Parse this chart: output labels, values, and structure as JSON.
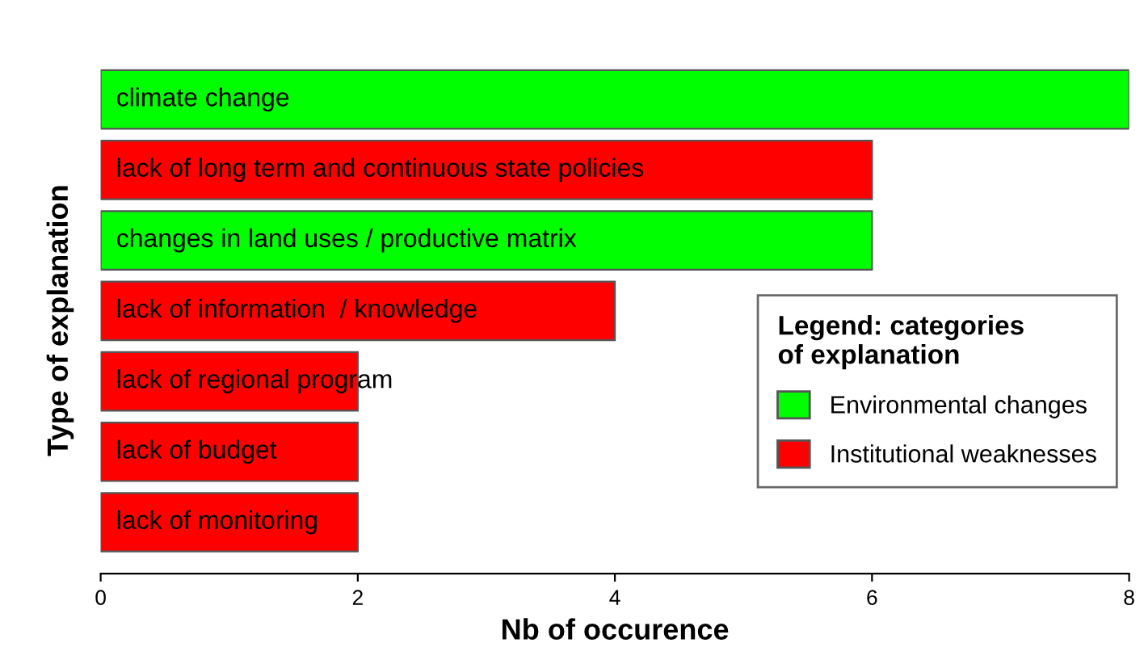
{
  "chart_data": {
    "type": "bar",
    "orientation": "horizontal",
    "xlabel": "Nb of occurence",
    "ylabel": "Type of explanation",
    "legend_title": "Legend: categories\nof explanation",
    "categories": [
      "climate change",
      "lack of long term and continuous state policies",
      "changes in land uses / productive matrix",
      "lack of information  / knowledge",
      "lack of regional program",
      "lack of budget",
      "lack of monitoring"
    ],
    "series": [
      {
        "name": "Environmental changes",
        "color": "#00ff00",
        "values": [
          8,
          null,
          6,
          null,
          null,
          null,
          null
        ]
      },
      {
        "name": "Institutional weaknesses",
        "color": "#ff0000",
        "values": [
          null,
          6,
          null,
          4,
          2,
          2,
          2
        ]
      }
    ],
    "xlim": [
      0,
      8
    ],
    "xticks": [
      0,
      2,
      4,
      6,
      8
    ],
    "grid": false,
    "legend": "right"
  }
}
